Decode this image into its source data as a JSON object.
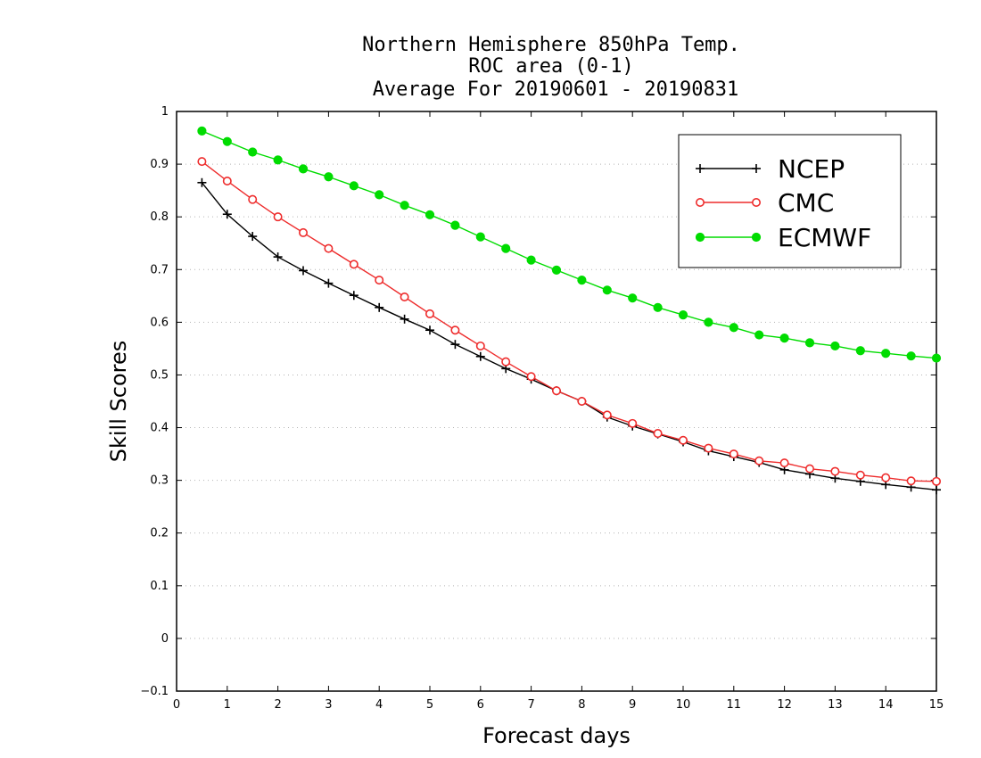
{
  "chart_data": {
    "type": "line",
    "title_lines": [
      "Northern Hemisphere 850hPa Temp.",
      "ROC area (0-1)",
      "Average For 20190601 - 20190831"
    ],
    "xlabel": "Forecast days",
    "ylabel": "Skill Scores",
    "xlim": [
      0,
      15
    ],
    "ylim": [
      -0.1,
      1
    ],
    "xticks": [
      "0",
      "1",
      "2",
      "3",
      "4",
      "5",
      "6",
      "7",
      "8",
      "9",
      "10",
      "11",
      "12",
      "13",
      "14",
      "15"
    ],
    "yticks": [
      "−0.1",
      "0",
      "0.1",
      "0.2",
      "0.3",
      "0.4",
      "0.5",
      "0.6",
      "0.7",
      "0.8",
      "0.9",
      "1"
    ],
    "grid": "horizontal dotted",
    "legend_position": "top-right",
    "x": [
      0.5,
      1,
      1.5,
      2,
      2.5,
      3,
      3.5,
      4,
      4.5,
      5,
      5.5,
      6,
      6.5,
      7,
      7.5,
      8,
      8.5,
      9,
      9.5,
      10,
      10.5,
      11,
      11.5,
      12,
      12.5,
      13,
      13.5,
      14,
      14.5,
      15
    ],
    "series": [
      {
        "name": "NCEP",
        "color": "#000000",
        "marker": "plus",
        "values": [
          0.865,
          0.805,
          0.763,
          0.724,
          0.698,
          0.674,
          0.651,
          0.628,
          0.606,
          0.585,
          0.558,
          0.535,
          0.512,
          0.492,
          0.47,
          0.45,
          0.42,
          0.403,
          0.388,
          0.373,
          0.356,
          0.345,
          0.334,
          0.32,
          0.312,
          0.304,
          0.298,
          0.292,
          0.287,
          0.282
        ]
      },
      {
        "name": "CMC",
        "color": "#ee2c2c",
        "marker": "open-circle",
        "values": [
          0.905,
          0.868,
          0.833,
          0.8,
          0.77,
          0.74,
          0.71,
          0.68,
          0.648,
          0.616,
          0.585,
          0.555,
          0.525,
          0.497,
          0.47,
          0.45,
          0.424,
          0.408,
          0.389,
          0.376,
          0.361,
          0.35,
          0.337,
          0.333,
          0.322,
          0.317,
          0.31,
          0.305,
          0.299,
          0.298
        ]
      },
      {
        "name": "ECMWF",
        "color": "#00dc00",
        "marker": "filled-circle",
        "values": [
          0.963,
          0.943,
          0.923,
          0.908,
          0.891,
          0.876,
          0.859,
          0.842,
          0.822,
          0.804,
          0.784,
          0.762,
          0.74,
          0.718,
          0.699,
          0.68,
          0.661,
          0.646,
          0.628,
          0.614,
          0.6,
          0.59,
          0.576,
          0.57,
          0.561,
          0.555,
          0.546,
          0.541,
          0.536,
          0.532
        ]
      }
    ]
  }
}
